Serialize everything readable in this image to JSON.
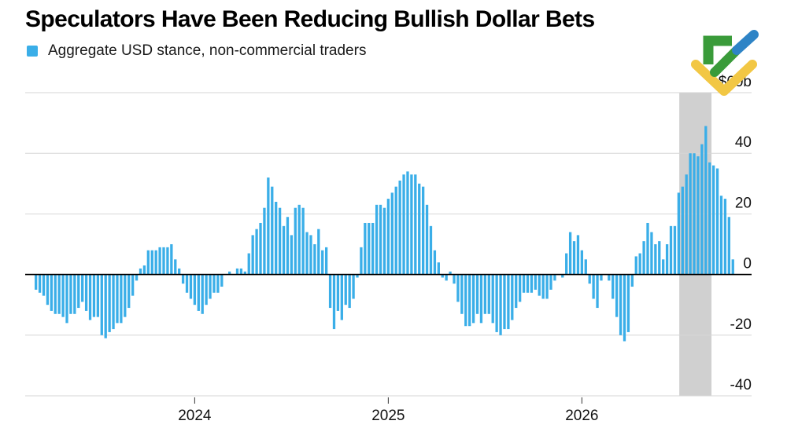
{
  "title": "Speculators Have Been Reducing Bullish Dollar Bets",
  "legend": {
    "label": "Aggregate USD stance, non-commercial traders",
    "color": "#3aaee8"
  },
  "colors": {
    "bar": "#3aaee8",
    "highlight": "#d0d0d0",
    "grid": "#d6d6d6",
    "zero_line": "#000000",
    "axis": "#333333"
  },
  "logo": {
    "name": "brand-logo",
    "colors": [
      "#3a9b3a",
      "#2e84c6",
      "#f2c744"
    ]
  },
  "chart_data": {
    "type": "bar",
    "title": "Speculators Have Been Reducing Bullish Dollar Bets",
    "series": [
      {
        "name": "Aggregate USD stance, non-commercial traders"
      }
    ],
    "ylim": [
      -40,
      60
    ],
    "yticks": [
      {
        "value": 60,
        "label": "$60b"
      },
      {
        "value": 40,
        "label": "40"
      },
      {
        "value": 20,
        "label": "20"
      },
      {
        "value": 0,
        "label": "0"
      },
      {
        "value": -20,
        "label": "-20"
      },
      {
        "value": -40,
        "label": "-40"
      }
    ],
    "xticks": [
      {
        "label": "2024",
        "index": 41
      },
      {
        "label": "2025",
        "index": 91
      },
      {
        "label": "2026",
        "index": 141
      }
    ],
    "highlight_range": [
      167,
      174
    ],
    "values": [
      -5,
      -6,
      -7,
      -10,
      -12,
      -13,
      -13,
      -14,
      -16,
      -13,
      -13,
      -11,
      -9,
      -12,
      -15,
      -14,
      -14,
      -20,
      -21,
      -19,
      -18,
      -16,
      -16,
      -14,
      -11,
      -7,
      -2,
      2,
      3,
      8,
      8,
      8,
      9,
      9,
      9,
      10,
      5,
      2,
      -3,
      -6,
      -8,
      -10,
      -12,
      -13,
      -10,
      -8,
      -6,
      -6,
      -4,
      0,
      1,
      0,
      2,
      2,
      1,
      7,
      13,
      15,
      17,
      22,
      32,
      29,
      24,
      22,
      16,
      19,
      13,
      22,
      23,
      22,
      14,
      13,
      10,
      15,
      8,
      9,
      -11,
      -18,
      -12,
      -15,
      -10,
      -11,
      -8,
      -1,
      9,
      17,
      17,
      17,
      23,
      23,
      22,
      25,
      27,
      29,
      31,
      33,
      34,
      33,
      33,
      30,
      29,
      23,
      16,
      8,
      4,
      -1,
      -2,
      1,
      -3,
      -9,
      -13,
      -17,
      -17,
      -16,
      -13,
      -16,
      -13,
      -13,
      -16,
      -19,
      -20,
      -18,
      -18,
      -15,
      -11,
      -9,
      -6,
      -6,
      -6,
      -5,
      -7,
      -8,
      -8,
      -5,
      -2,
      0,
      -1,
      7,
      14,
      11,
      13,
      8,
      5,
      -3,
      -8,
      -11,
      -2,
      0,
      -2,
      -8,
      -14,
      -20,
      -22,
      -19,
      -4,
      6,
      7,
      11,
      17,
      14,
      10,
      11,
      5,
      10,
      16,
      16,
      27,
      29,
      33,
      40,
      40,
      39,
      43,
      49,
      37,
      36,
      35,
      26,
      25,
      19,
      5
    ]
  }
}
